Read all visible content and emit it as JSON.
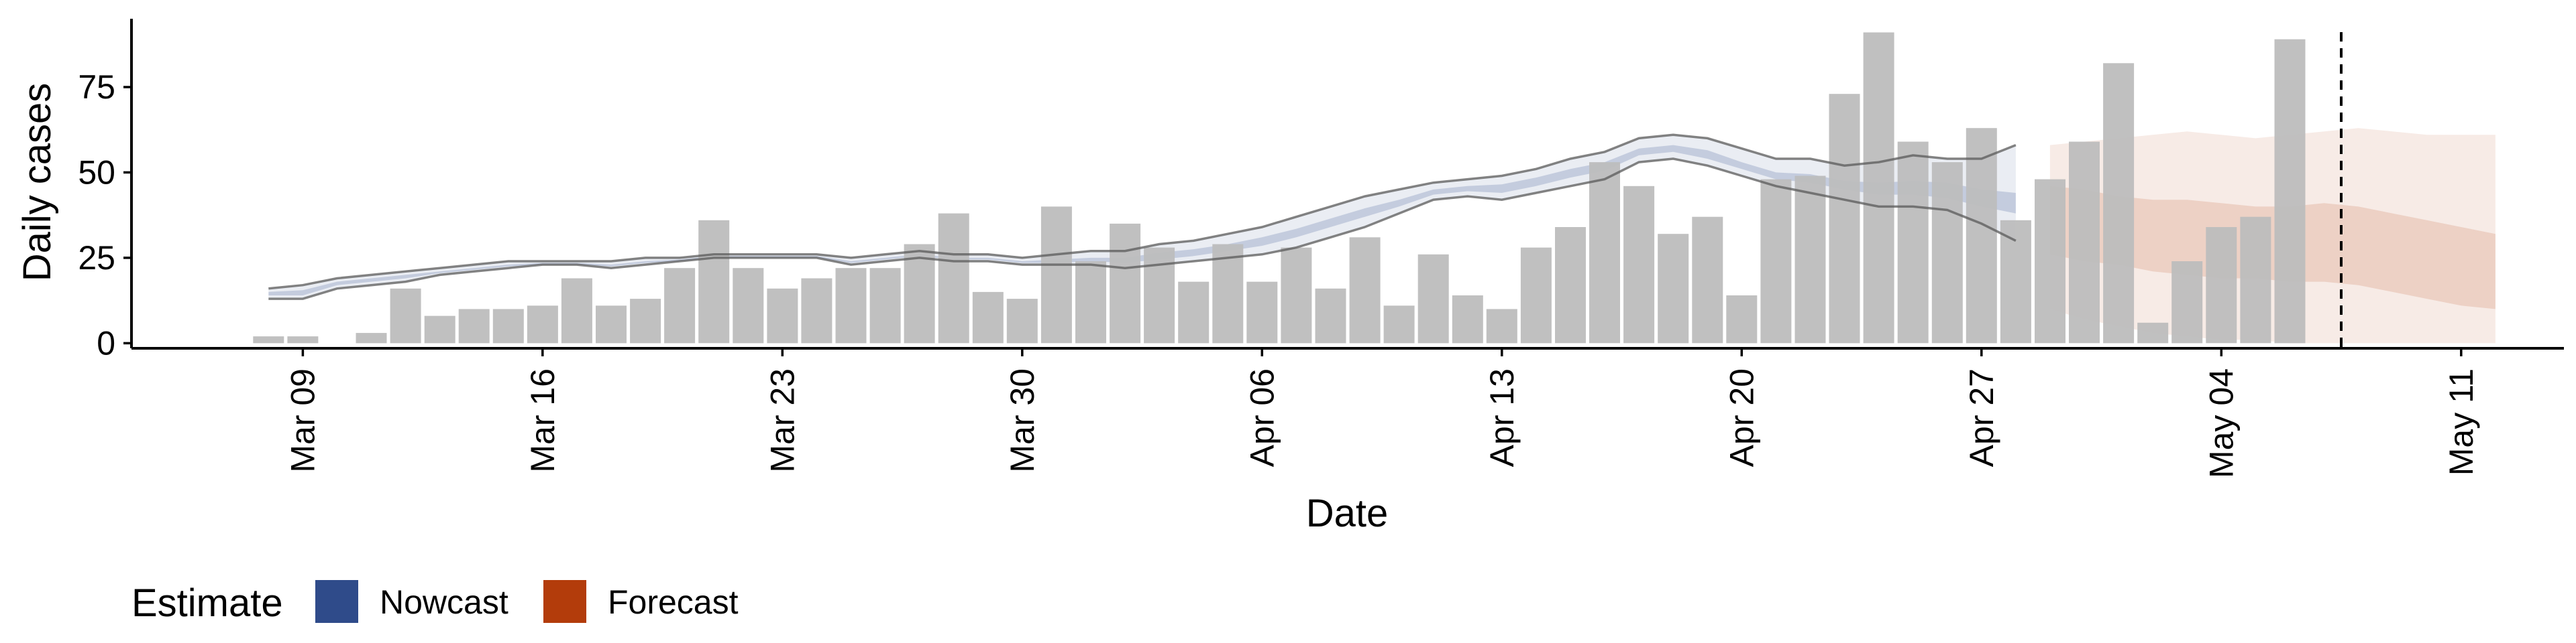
{
  "chart_data": {
    "type": "bar",
    "xlabel": "Date",
    "ylabel": "Daily cases",
    "ylim": [
      -1.5,
      95
    ],
    "yticks": [
      0,
      25,
      50,
      75
    ],
    "xlim_dates": [
      "2020-03-04",
      "2020-05-14"
    ],
    "xticks": [
      {
        "date": "2020-03-09",
        "label": "Mar 09"
      },
      {
        "date": "2020-03-16",
        "label": "Mar 16"
      },
      {
        "date": "2020-03-23",
        "label": "Mar 23"
      },
      {
        "date": "2020-03-30",
        "label": "Mar 30"
      },
      {
        "date": "2020-04-06",
        "label": "Apr 06"
      },
      {
        "date": "2020-04-13",
        "label": "Apr 13"
      },
      {
        "date": "2020-04-20",
        "label": "Apr 20"
      },
      {
        "date": "2020-04-27",
        "label": "Apr 27"
      },
      {
        "date": "2020-05-04",
        "label": "May 04"
      },
      {
        "date": "2020-05-11",
        "label": "May 11"
      }
    ],
    "grid": false,
    "legend_position": "bottom-left",
    "cases": {
      "name": "Daily cases",
      "color": "#bdbdbd",
      "dates": [
        "2020-03-08",
        "2020-03-09",
        "2020-03-10",
        "2020-03-11",
        "2020-03-12",
        "2020-03-13",
        "2020-03-14",
        "2020-03-15",
        "2020-03-16",
        "2020-03-17",
        "2020-03-18",
        "2020-03-19",
        "2020-03-20",
        "2020-03-21",
        "2020-03-22",
        "2020-03-23",
        "2020-03-24",
        "2020-03-25",
        "2020-03-26",
        "2020-03-27",
        "2020-03-28",
        "2020-03-29",
        "2020-03-30",
        "2020-03-31",
        "2020-04-01",
        "2020-04-02",
        "2020-04-03",
        "2020-04-04",
        "2020-04-05",
        "2020-04-06",
        "2020-04-07",
        "2020-04-08",
        "2020-04-09",
        "2020-04-10",
        "2020-04-11",
        "2020-04-12",
        "2020-04-13",
        "2020-04-14",
        "2020-04-15",
        "2020-04-16",
        "2020-04-17",
        "2020-04-18",
        "2020-04-19",
        "2020-04-20",
        "2020-04-21",
        "2020-04-22",
        "2020-04-23",
        "2020-04-24",
        "2020-04-25",
        "2020-04-26",
        "2020-04-27",
        "2020-04-28",
        "2020-04-29",
        "2020-04-30",
        "2020-05-01",
        "2020-05-02",
        "2020-05-03",
        "2020-05-04",
        "2020-05-05",
        "2020-05-06",
        "2020-05-07"
      ],
      "values": [
        2,
        2,
        0,
        3,
        16,
        8,
        10,
        10,
        11,
        19,
        11,
        13,
        22,
        36,
        22,
        16,
        19,
        22,
        22,
        29,
        38,
        15,
        13,
        40,
        24,
        35,
        28,
        18,
        29,
        18,
        28,
        16,
        31,
        11,
        26,
        14,
        10,
        28,
        34,
        53,
        46,
        32,
        37,
        14,
        48,
        49,
        73,
        91,
        59,
        53,
        63,
        36,
        48,
        59,
        82,
        6,
        24,
        34,
        37,
        89,
        0
      ]
    },
    "nowcast": {
      "name": "Nowcast",
      "color": "#2f4b8a",
      "dates": [
        "2020-03-08",
        "2020-03-09",
        "2020-03-10",
        "2020-03-11",
        "2020-03-12",
        "2020-03-13",
        "2020-03-14",
        "2020-03-15",
        "2020-03-16",
        "2020-03-17",
        "2020-03-18",
        "2020-03-19",
        "2020-03-20",
        "2020-03-21",
        "2020-03-22",
        "2020-03-23",
        "2020-03-24",
        "2020-03-25",
        "2020-03-26",
        "2020-03-27",
        "2020-03-28",
        "2020-03-29",
        "2020-03-30",
        "2020-03-31",
        "2020-04-01",
        "2020-04-02",
        "2020-04-03",
        "2020-04-04",
        "2020-04-05",
        "2020-04-06",
        "2020-04-07",
        "2020-04-08",
        "2020-04-09",
        "2020-04-10",
        "2020-04-11",
        "2020-04-12",
        "2020-04-13",
        "2020-04-14",
        "2020-04-15",
        "2020-04-16",
        "2020-04-17",
        "2020-04-18",
        "2020-04-19",
        "2020-04-20",
        "2020-04-21",
        "2020-04-22",
        "2020-04-23",
        "2020-04-24",
        "2020-04-25",
        "2020-04-26",
        "2020-04-27",
        "2020-04-28"
      ],
      "upper90": [
        16,
        17,
        19,
        20,
        21,
        22,
        23,
        24,
        24,
        24,
        24,
        25,
        25,
        26,
        26,
        26,
        26,
        25,
        26,
        27,
        26,
        26,
        25,
        26,
        27,
        27,
        29,
        30,
        32,
        34,
        37,
        40,
        43,
        45,
        47,
        48,
        49,
        51,
        54,
        56,
        60,
        61,
        60,
        57,
        54,
        54,
        52,
        53,
        55,
        54,
        54,
        58
      ],
      "lower90": [
        13,
        13,
        16,
        17,
        18,
        20,
        21,
        22,
        23,
        23,
        22,
        23,
        24,
        25,
        25,
        25,
        25,
        23,
        24,
        25,
        24,
        24,
        23,
        23,
        23,
        22,
        23,
        24,
        25,
        26,
        28,
        31,
        34,
        38,
        42,
        43,
        42,
        44,
        46,
        48,
        53,
        54,
        52,
        49,
        46,
        44,
        42,
        40,
        40,
        39,
        35,
        30
      ],
      "upper50": [
        15,
        15.5,
        18,
        19,
        20,
        21,
        22,
        23,
        23.5,
        23.5,
        23,
        24,
        24.5,
        25.5,
        25.5,
        25.5,
        25.5,
        24,
        25,
        26,
        25,
        25,
        24,
        24.5,
        25,
        25,
        26.5,
        27.5,
        29,
        31,
        33.5,
        36.5,
        39.5,
        42,
        45,
        46,
        46.5,
        48.5,
        51,
        53,
        57,
        58,
        56.5,
        53,
        50,
        49.5,
        47.5,
        47,
        47.5,
        47,
        45,
        44
      ],
      "lower50": [
        14,
        14,
        17,
        18,
        19,
        20.5,
        21.5,
        22.5,
        23,
        23,
        22.5,
        23.5,
        24,
        25,
        25,
        25,
        25,
        23.5,
        24.5,
        25.5,
        24.5,
        24.5,
        23.5,
        23.5,
        24,
        23.5,
        24.5,
        25.5,
        27,
        28.5,
        31,
        34,
        37,
        40,
        43.5,
        44.5,
        44,
        46,
        48.5,
        50.5,
        55,
        56,
        54,
        51,
        48,
        47,
        45,
        43.5,
        43.5,
        42.5,
        40,
        38
      ]
    },
    "forecast": {
      "name": "Forecast",
      "color": "#b33c0b",
      "dates": [
        "2020-04-29",
        "2020-04-30",
        "2020-05-01",
        "2020-05-02",
        "2020-05-03",
        "2020-05-04",
        "2020-05-05",
        "2020-05-06",
        "2020-05-07",
        "2020-05-08",
        "2020-05-09",
        "2020-05-10",
        "2020-05-11",
        "2020-05-12"
      ],
      "upper90": [
        58,
        59,
        60,
        61,
        62,
        61,
        60,
        61,
        62,
        63,
        62,
        61,
        61,
        61
      ],
      "lower90": [
        10,
        7,
        5,
        3,
        2,
        1,
        1,
        0,
        0,
        0,
        0,
        0,
        0,
        0
      ],
      "upper50": [
        46,
        45,
        43,
        42,
        42,
        41,
        40,
        40,
        41,
        40,
        38,
        36,
        34,
        32
      ],
      "lower50": [
        26,
        24,
        23,
        21,
        20,
        19,
        19,
        18,
        18,
        17,
        15,
        13,
        11,
        10
      ]
    },
    "reference_line": {
      "date": "2020-05-07",
      "style": "dashed",
      "color": "#000000"
    }
  },
  "legend": {
    "title": "Estimate",
    "items": [
      {
        "label": "Nowcast",
        "color": "#2f4b8a"
      },
      {
        "label": "Forecast",
        "color": "#b33c0b"
      }
    ]
  }
}
